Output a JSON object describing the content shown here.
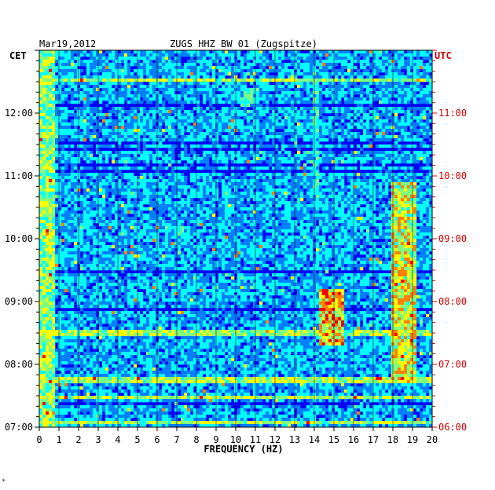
{
  "chart_data": {
    "type": "heatmap",
    "date": "Mar19,2012",
    "title": "ZUGS HHZ BW 01 (Zugspitze)",
    "xlabel": "FREQUENCY (HZ)",
    "xlim": [
      0,
      20
    ],
    "x_ticks": [
      "0",
      "1",
      "2",
      "3",
      "4",
      "5",
      "6",
      "7",
      "8",
      "9",
      "10",
      "11",
      "12",
      "13",
      "14",
      "15",
      "16",
      "17",
      "18",
      "19",
      "20"
    ],
    "left_axis_label": "CET",
    "right_axis_label": "UTC",
    "left_ticks": [
      "12:00",
      "11:00",
      "10:00",
      "09:00",
      "08:00",
      "07:00"
    ],
    "right_ticks": [
      "11:00",
      "10:00",
      "09:00",
      "08:00",
      "07:00",
      "06:00"
    ],
    "left_tick_hours": [
      12,
      11,
      10,
      9,
      8,
      7
    ],
    "time_range_cet": [
      "07:00",
      "13:00"
    ],
    "colormap": [
      "#00007f",
      "#0000ff",
      "#007fff",
      "#00ffff",
      "#7fff7f",
      "#ffff00",
      "#ff7f00",
      "#ff0000"
    ],
    "axis_colors": {
      "left": "#000000",
      "right": "#cc0000"
    },
    "grid": true,
    "energy_features": [
      {
        "name": "low-frequency noise",
        "f": [
          0.0,
          0.8
        ],
        "t": [
          7.0,
          13.0
        ],
        "level": 0.75
      },
      {
        "name": "band near 18-19 Hz",
        "f": [
          17.9,
          19.2
        ],
        "t": [
          7.7,
          10.9
        ],
        "level": 0.85
      },
      {
        "name": "burst near 14.5-15.5 Hz",
        "f": [
          14.3,
          15.6
        ],
        "t": [
          8.3,
          9.2
        ],
        "level": 0.95
      },
      {
        "name": "burst near 6.5-7.5 Hz",
        "f": [
          6.4,
          7.6
        ],
        "t": [
          10.0,
          10.2
        ],
        "level": 0.55
      },
      {
        "name": "burst near 10.5-11 Hz",
        "f": [
          10.2,
          11.2
        ],
        "t": [
          12.1,
          12.4
        ],
        "level": 0.6
      },
      {
        "name": "line near 14 Hz",
        "f": [
          13.9,
          14.3
        ],
        "t": [
          10.5,
          12.7
        ],
        "level": 0.55
      }
    ]
  },
  "footer_mark": "*"
}
